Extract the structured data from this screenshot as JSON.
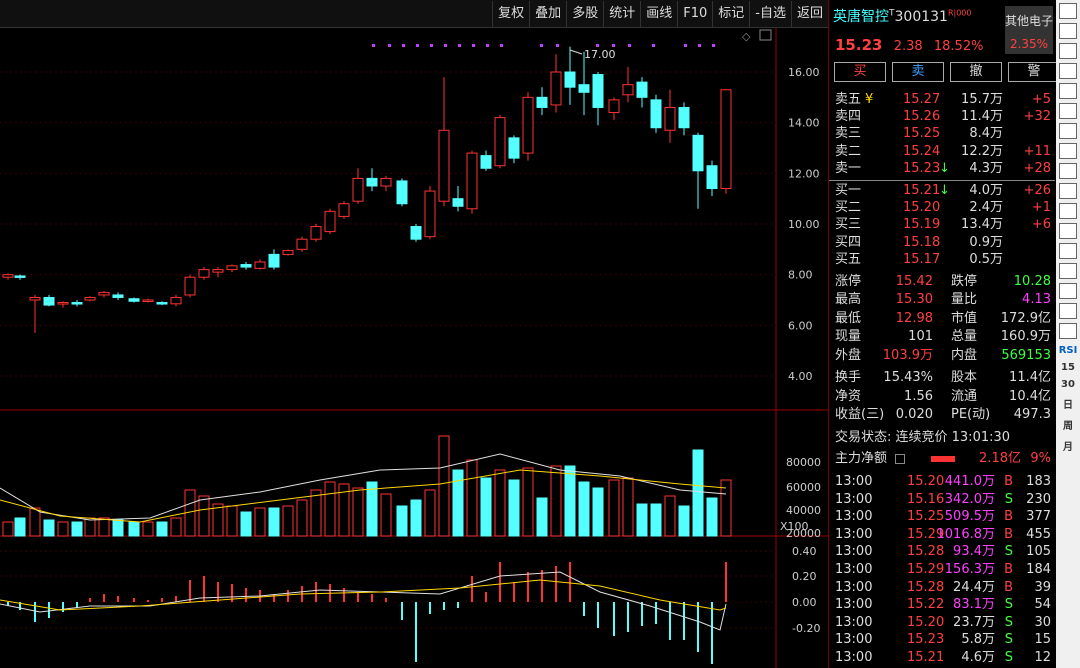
{
  "toolbar_top": [
    "复权",
    "叠加",
    "多股",
    "统计",
    "画线",
    "F10",
    "标记",
    "-自选",
    "返回"
  ],
  "kline": {
    "price_ticks": [
      "16.00",
      "14.00",
      "12.00",
      "10.00",
      "8.00",
      "6.00",
      "4.00"
    ],
    "high_label": "17.00",
    "vol_ticks": [
      "80000",
      "60000",
      "40000",
      "20000"
    ],
    "vol_unit": "X100",
    "macd_ticks": [
      "0.40",
      "0.20",
      "0.00",
      "-0.20"
    ]
  },
  "header": {
    "name": "英唐智控",
    "tag": "T",
    "code": "300131",
    "badge": "R|000",
    "other": "其他电子",
    "other_pct": "2.35%",
    "price": "15.23",
    "change": "2.38",
    "pct": "18.52%"
  },
  "actions": [
    "买",
    "卖",
    "撤",
    "警"
  ],
  "sells": [
    {
      "label": "卖五",
      "mark": "¥",
      "price": "15.27",
      "vol": "15.7万",
      "chg": "+5"
    },
    {
      "label": "卖四",
      "mark": "",
      "price": "15.26",
      "vol": "11.4万",
      "chg": "+32"
    },
    {
      "label": "卖三",
      "mark": "",
      "price": "15.25",
      "vol": "8.4万",
      "chg": ""
    },
    {
      "label": "卖二",
      "mark": "",
      "price": "15.24",
      "vol": "12.2万",
      "chg": "+11"
    },
    {
      "label": "卖一",
      "mark": "",
      "price": "15.23",
      "vol": "4.3万",
      "chg": "+28",
      "arrow": "↓"
    }
  ],
  "buys": [
    {
      "label": "买一",
      "price": "15.21",
      "vol": "4.0万",
      "chg": "+26",
      "arrow": "↓"
    },
    {
      "label": "买二",
      "price": "15.20",
      "vol": "2.4万",
      "chg": "+1"
    },
    {
      "label": "买三",
      "price": "15.19",
      "vol": "13.4万",
      "chg": "+6"
    },
    {
      "label": "买四",
      "price": "15.18",
      "vol": "0.9万",
      "chg": ""
    },
    {
      "label": "买五",
      "price": "15.17",
      "vol": "0.5万",
      "chg": ""
    }
  ],
  "stats": [
    {
      "l1": "涨停",
      "v1": "15.42",
      "c1": "r",
      "l2": "跌停",
      "v2": "10.28",
      "c2": "g"
    },
    {
      "l1": "最高",
      "v1": "15.30",
      "c1": "r",
      "l2": "量比",
      "v2": "4.13",
      "c2": "m"
    },
    {
      "l1": "最低",
      "v1": "12.98",
      "c1": "r",
      "l2": "市值",
      "v2": "172.9亿",
      "c2": "w"
    },
    {
      "l1": "现量",
      "v1": "101",
      "c1": "w",
      "l2": "总量",
      "v2": "160.9万",
      "c2": "w"
    },
    {
      "l1": "外盘",
      "v1": "103.9万",
      "c1": "r",
      "l2": "内盘",
      "v2": "569153",
      "c2": "g"
    }
  ],
  "stats2": [
    {
      "l1": "换手",
      "v1": "15.43%",
      "l2": "股本",
      "v2": "11.4亿"
    },
    {
      "l1": "净资",
      "v1": "1.56",
      "l2": "流通",
      "v2": "10.4亿"
    },
    {
      "l1": "收益(三)",
      "v1": "0.020",
      "l2": "PE(动)",
      "v2": "497.3"
    }
  ],
  "trade_status": "交易状态: 连续竞价 13:01:30",
  "main_flow": {
    "label": "主力净额",
    "value": "2.18亿",
    "pct": "9%"
  },
  "ticks": [
    {
      "t": "13:00",
      "p": "15.20",
      "v": "441.0万",
      "s": "B",
      "n": "183",
      "vc": "m"
    },
    {
      "t": "13:00",
      "p": "15.16",
      "v": "342.0万",
      "s": "S",
      "n": "230",
      "vc": "m"
    },
    {
      "t": "13:00",
      "p": "15.25",
      "v": "509.5万",
      "s": "B",
      "n": "377",
      "vc": "m"
    },
    {
      "t": "13:00",
      "p": "15.29",
      "v": "1016.8万",
      "s": "B",
      "n": "455",
      "vc": "m"
    },
    {
      "t": "13:00",
      "p": "15.28",
      "v": "93.4万",
      "s": "S",
      "n": "105",
      "vc": "m"
    },
    {
      "t": "13:00",
      "p": "15.29",
      "v": "156.3万",
      "s": "B",
      "n": "184",
      "vc": "m"
    },
    {
      "t": "13:00",
      "p": "15.28",
      "v": "24.4万",
      "s": "B",
      "n": "39",
      "vc": "w"
    },
    {
      "t": "13:00",
      "p": "15.22",
      "v": "83.1万",
      "s": "S",
      "n": "54",
      "vc": "m"
    },
    {
      "t": "13:00",
      "p": "15.20",
      "v": "23.7万",
      "s": "S",
      "n": "30",
      "vc": "w"
    },
    {
      "t": "13:00",
      "p": "15.23",
      "v": "5.8万",
      "s": "S",
      "n": "15",
      "vc": "w"
    },
    {
      "t": "13:00",
      "p": "15.21",
      "v": "4.6万",
      "s": "S",
      "n": "12",
      "vc": "w"
    }
  ],
  "side_icons": [
    "RSI",
    "15",
    "30",
    "日",
    "周",
    "月"
  ]
}
